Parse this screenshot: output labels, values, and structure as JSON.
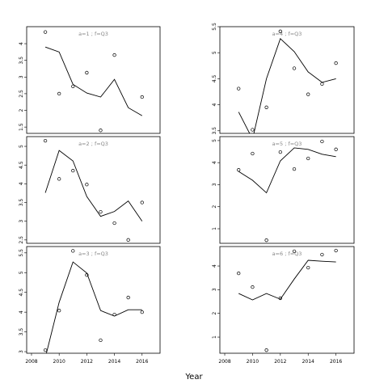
{
  "x_label": "Year",
  "chart_data": [
    {
      "type": "line",
      "title": "a=1 ; f=Q3",
      "x": [
        2009,
        2010,
        2011,
        2012,
        2013,
        2014,
        2015,
        2016
      ],
      "points": [
        4.35,
        2.5,
        2.72,
        3.13,
        1.4,
        3.66,
        null,
        2.4
      ],
      "fit": [
        3.9,
        3.75,
        2.78,
        2.52,
        2.4,
        2.93,
        2.08,
        1.84
      ],
      "xlim": [
        2007.65,
        2017.3
      ],
      "ylim": [
        1.31,
        4.51
      ],
      "yticks": [
        1.5,
        2.0,
        2.5,
        3.0,
        3.5,
        4.0
      ]
    },
    {
      "type": "line",
      "title": "a=2 ; f=Q3",
      "x": [
        2009,
        2010,
        2011,
        2012,
        2013,
        2014,
        2015,
        2016
      ],
      "points": [
        5.15,
        4.13,
        4.35,
        3.98,
        3.25,
        2.95,
        2.5,
        3.5
      ],
      "fit": [
        3.76,
        4.89,
        4.61,
        3.66,
        3.13,
        3.26,
        3.54,
        3.0
      ],
      "xlim": [
        2007.65,
        2017.3
      ],
      "ylim": [
        2.41,
        5.26
      ],
      "yticks": [
        2.5,
        3.0,
        3.5,
        4.0,
        4.5,
        5.0
      ]
    },
    {
      "type": "line",
      "title": "a=3 ; f=Q3",
      "x": [
        2009,
        2010,
        2011,
        2012,
        2013,
        2014,
        2015,
        2016
      ],
      "points": [
        3.04,
        4.04,
        5.55,
        4.94,
        3.29,
        3.94,
        4.37,
        4.0
      ],
      "fit": [
        2.85,
        4.25,
        5.27,
        4.99,
        4.04,
        3.9,
        4.06,
        4.06
      ],
      "xlim": [
        2007.65,
        2017.3
      ],
      "ylim": [
        2.96,
        5.66
      ],
      "yticks": [
        3.0,
        3.5,
        4.0,
        4.5,
        5.0,
        5.5
      ],
      "xticks": [
        2008,
        2010,
        2012,
        2014,
        2016
      ]
    },
    {
      "type": "line",
      "title": "a=4 ; f=Q3",
      "x": [
        2009,
        2010,
        2011,
        2012,
        2013,
        2014,
        2015,
        2016
      ],
      "points": [
        4.31,
        3.52,
        3.95,
        5.41,
        4.7,
        4.2,
        4.4,
        4.8
      ],
      "fit": [
        3.86,
        3.34,
        4.5,
        5.27,
        5.02,
        4.63,
        4.43,
        4.5
      ],
      "xlim": [
        2007.65,
        2017.3
      ],
      "ylim": [
        3.45,
        5.5
      ],
      "yticks": [
        3.5,
        4.0,
        4.5,
        5.0,
        5.5
      ]
    },
    {
      "type": "line",
      "title": "a=5 ; f=Q3",
      "x": [
        2009,
        2010,
        2011,
        2012,
        2013,
        2014,
        2015,
        2016
      ],
      "points": [
        3.67,
        4.41,
        0.48,
        4.48,
        3.71,
        4.19,
        4.96,
        4.6
      ],
      "fit": [
        3.6,
        3.2,
        2.63,
        4.08,
        4.67,
        4.6,
        4.38,
        4.27
      ],
      "xlim": [
        2007.65,
        2017.3
      ],
      "ylim": [
        0.34,
        5.18
      ],
      "yticks": [
        1,
        2,
        3,
        4,
        5
      ]
    },
    {
      "type": "line",
      "title": "a=6 ; f=Q3",
      "x": [
        2009,
        2010,
        2011,
        2012,
        2013,
        2014,
        2015,
        2016
      ],
      "points": [
        3.69,
        3.11,
        0.45,
        2.64,
        4.62,
        3.93,
        4.48,
        4.65
      ],
      "fit": [
        2.84,
        2.57,
        2.84,
        2.6,
        3.45,
        4.24,
        4.2,
        4.17
      ],
      "xlim": [
        2007.65,
        2017.3
      ],
      "ylim": [
        0.32,
        4.82
      ],
      "yticks": [
        1,
        2,
        3,
        4
      ],
      "xticks": [
        2008,
        2010,
        2012,
        2014,
        2016
      ]
    }
  ]
}
